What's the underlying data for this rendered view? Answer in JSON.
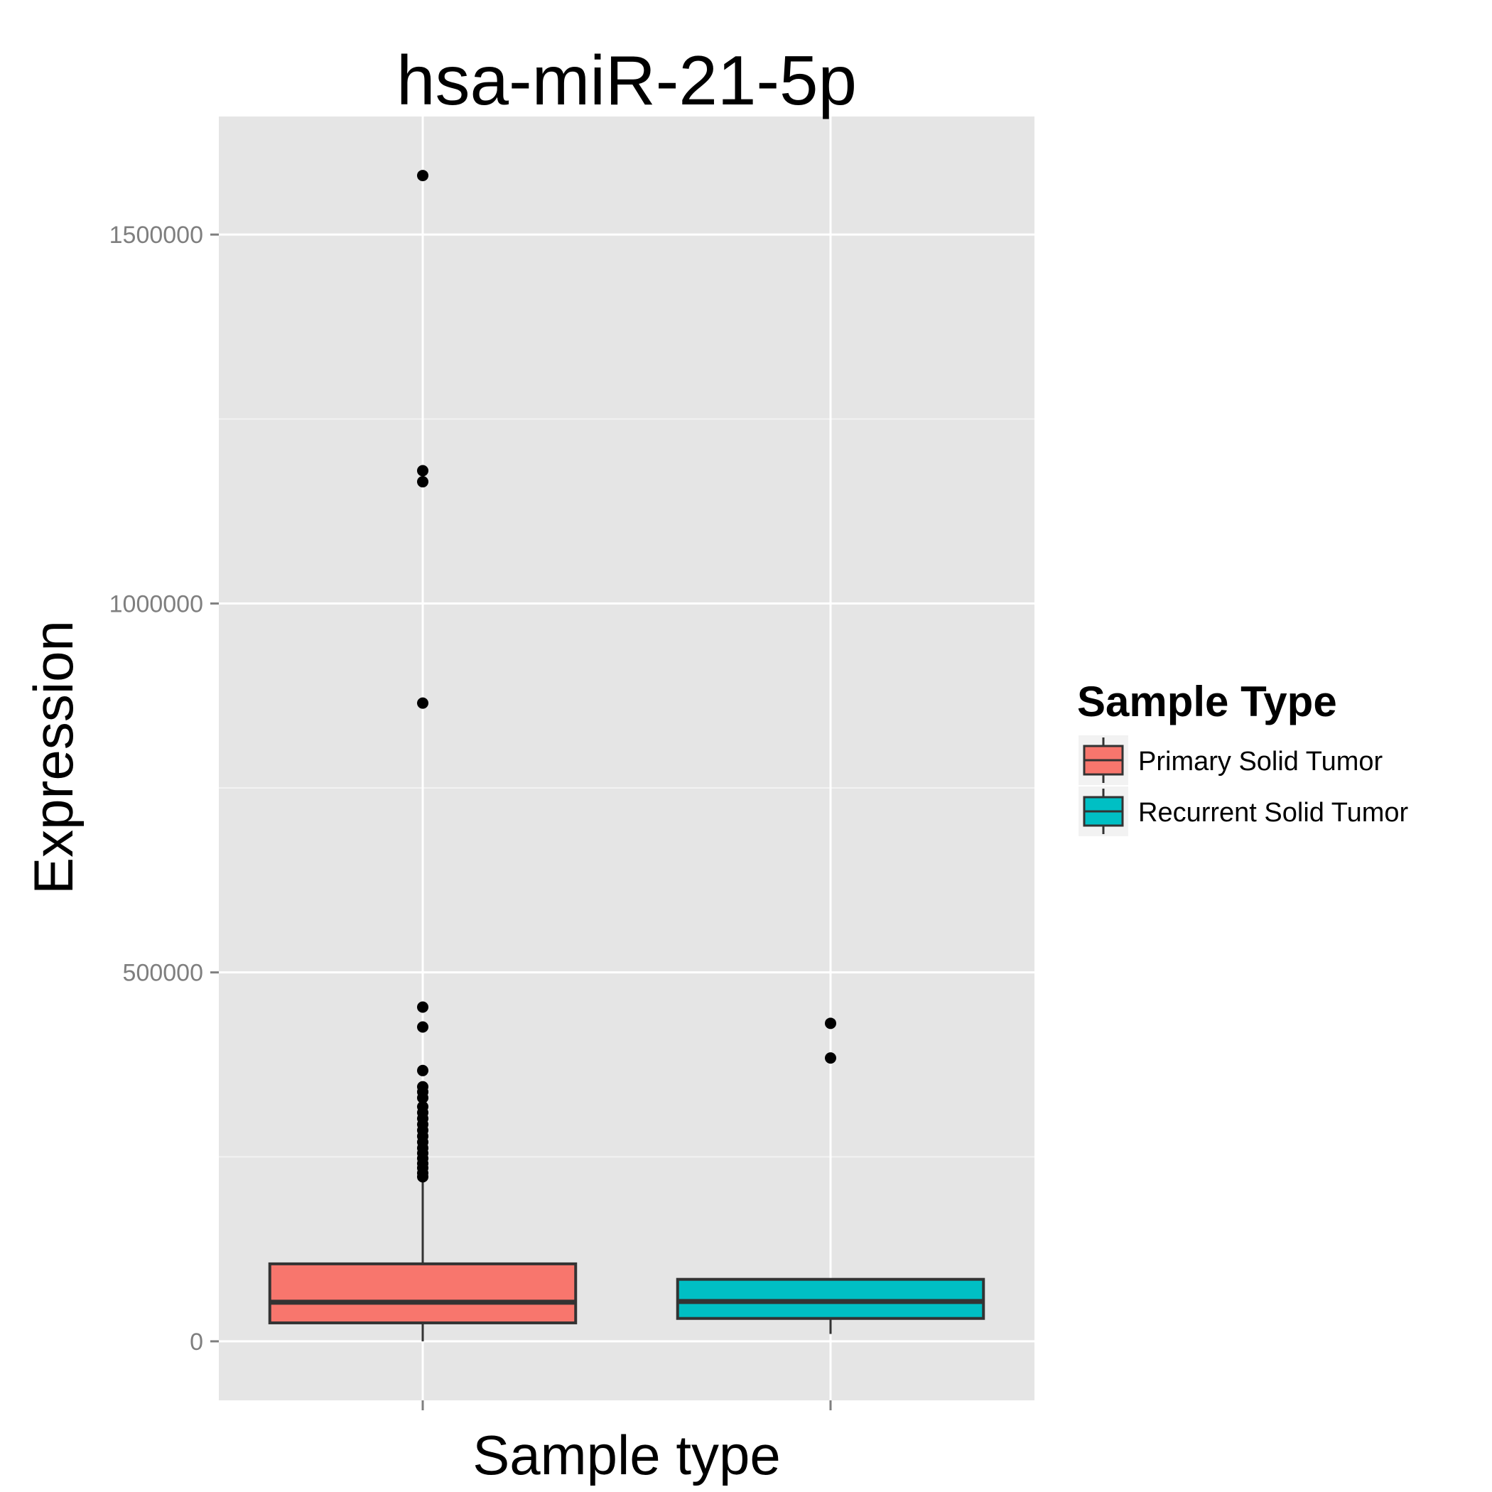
{
  "chart_data": {
    "type": "boxplot",
    "title": "hsa-miR-21-5p",
    "xlabel": "Sample type",
    "ylabel": "Expression",
    "ylim": [
      -80000,
      1660000
    ],
    "yticks": [
      0,
      500000,
      1000000,
      1500000
    ],
    "ytick_labels": [
      "0",
      "500000",
      "1000000",
      "1500000"
    ],
    "x_tick_labels": [
      "",
      ""
    ],
    "grid": true,
    "legend": {
      "title": "Sample Type",
      "position": "right",
      "entries": [
        {
          "label": "Primary Solid Tumor",
          "color": "#F8766D"
        },
        {
          "label": "Recurrent Solid Tumor",
          "color": "#00BFC4"
        }
      ]
    },
    "series": [
      {
        "name": "Primary Solid Tumor",
        "color": "#F8766D",
        "whisker_low": 0,
        "q1": 25000,
        "median": 53000,
        "q3": 105000,
        "whisker_high": 220000,
        "outliers": [
          1580000,
          1180000,
          1165000,
          865000,
          453000,
          426000,
          367000,
          345000,
          338000,
          330000,
          318000,
          310000,
          302000,
          294000,
          286000,
          278000,
          270000,
          262000,
          255000,
          248000,
          241000,
          235000,
          228000,
          223000
        ]
      },
      {
        "name": "Recurrent Solid Tumor",
        "color": "#00BFC4",
        "whisker_low": 10000,
        "q1": 31000,
        "median": 54000,
        "q3": 84000,
        "whisker_high": 84000,
        "outliers": [
          431000,
          384000
        ]
      }
    ]
  }
}
